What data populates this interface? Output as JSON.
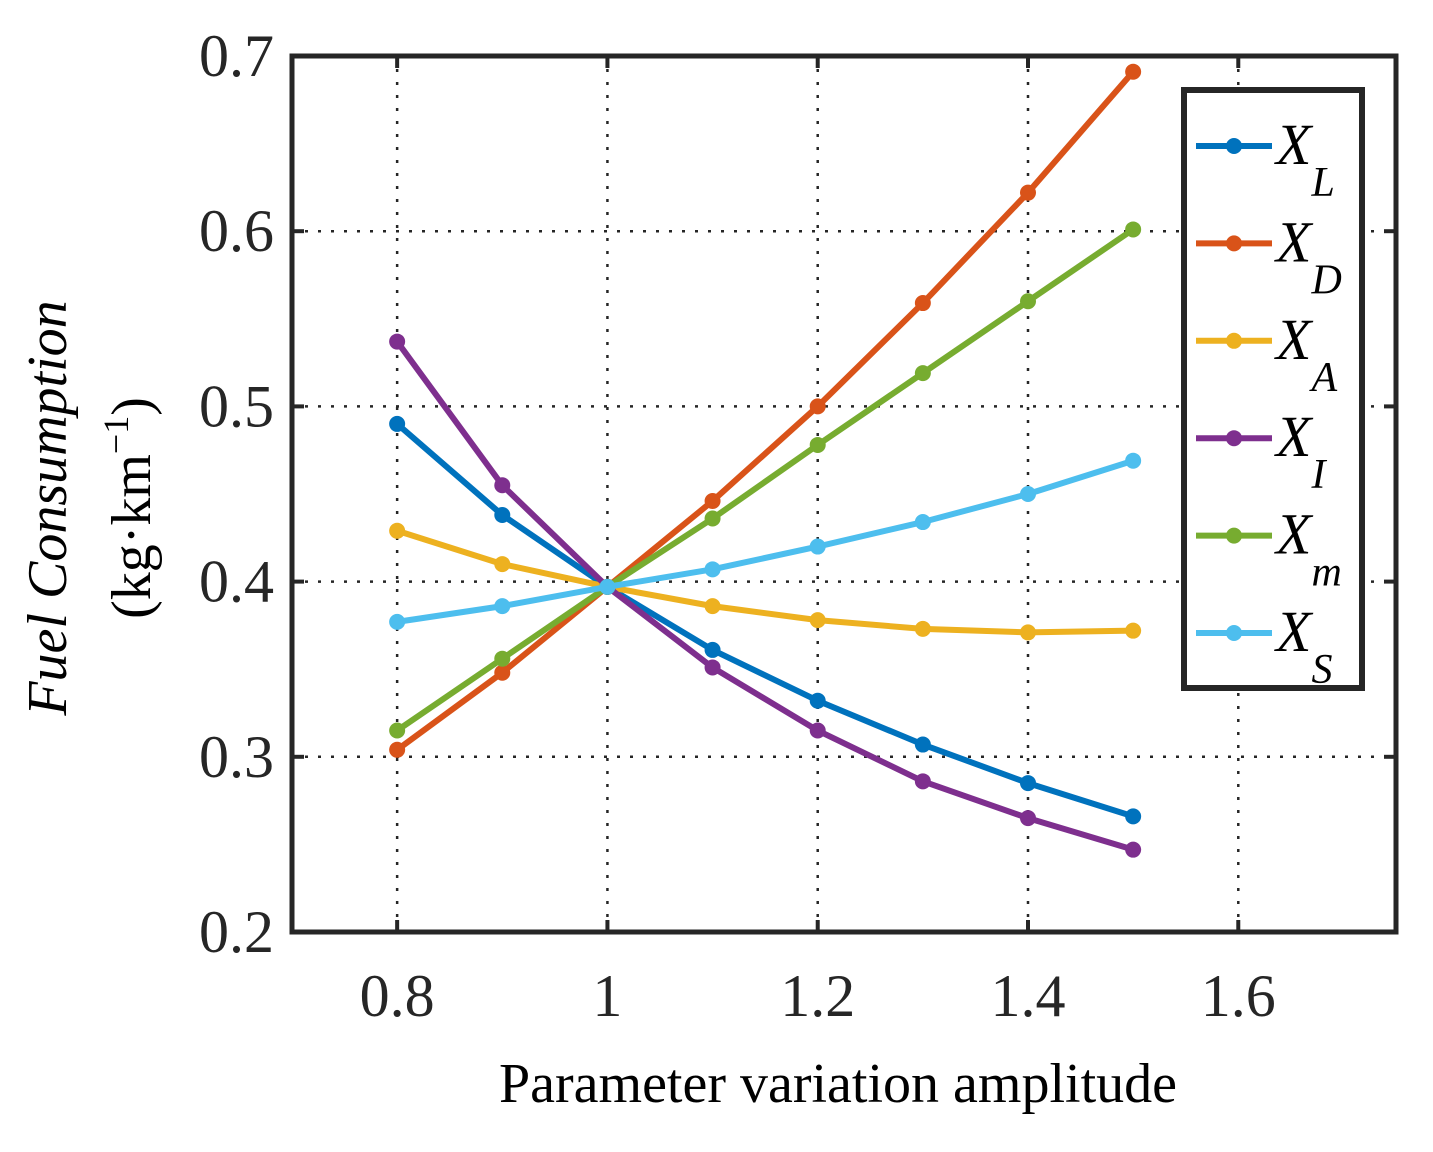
{
  "chart_data": {
    "type": "line",
    "title": "",
    "xlabel": "Parameter variation amplitude",
    "ylabel": {
      "line1": "Fuel Consumption",
      "line2_prefix": "(kg·km",
      "line2_sup": "−1",
      "line2_suffix": ")"
    },
    "xlim": [
      0.7,
      1.75
    ],
    "ylim": [
      0.2,
      0.7
    ],
    "xticks": [
      0.8,
      1.0,
      1.2,
      1.4,
      1.6
    ],
    "xtick_labels": [
      "0.8",
      "1",
      "1.2",
      "1.4",
      "1.6"
    ],
    "yticks": [
      0.2,
      0.3,
      0.4,
      0.5,
      0.6,
      0.7
    ],
    "ytick_labels": [
      "0.2",
      "0.3",
      "0.4",
      "0.5",
      "0.6",
      "0.7"
    ],
    "grid": true,
    "legend_position": "top-right",
    "x": [
      0.8,
      0.9,
      1.0,
      1.1,
      1.2,
      1.3,
      1.4,
      1.5
    ],
    "series": [
      {
        "name": "X",
        "sub": "L",
        "color": "#0072BD",
        "values": [
          0.49,
          0.438,
          0.397,
          0.361,
          0.332,
          0.307,
          0.285,
          0.266
        ]
      },
      {
        "name": "X",
        "sub": "D",
        "color": "#D95319",
        "values": [
          0.304,
          0.348,
          0.397,
          0.446,
          0.5,
          0.559,
          0.622,
          0.691
        ]
      },
      {
        "name": "X",
        "sub": "A",
        "color": "#EDB120",
        "values": [
          0.429,
          0.41,
          0.397,
          0.386,
          0.378,
          0.373,
          0.371,
          0.372
        ]
      },
      {
        "name": "X",
        "sub": "I",
        "color": "#7E2F8E",
        "values": [
          0.537,
          0.455,
          0.397,
          0.351,
          0.315,
          0.286,
          0.265,
          0.247
        ]
      },
      {
        "name": "X",
        "sub": "m",
        "color": "#77AC30",
        "values": [
          0.315,
          0.356,
          0.397,
          0.436,
          0.478,
          0.519,
          0.56,
          0.601
        ]
      },
      {
        "name": "X",
        "sub": "S",
        "color": "#4DBEEE",
        "values": [
          0.377,
          0.386,
          0.397,
          0.407,
          0.42,
          0.434,
          0.45,
          0.469
        ]
      }
    ]
  }
}
